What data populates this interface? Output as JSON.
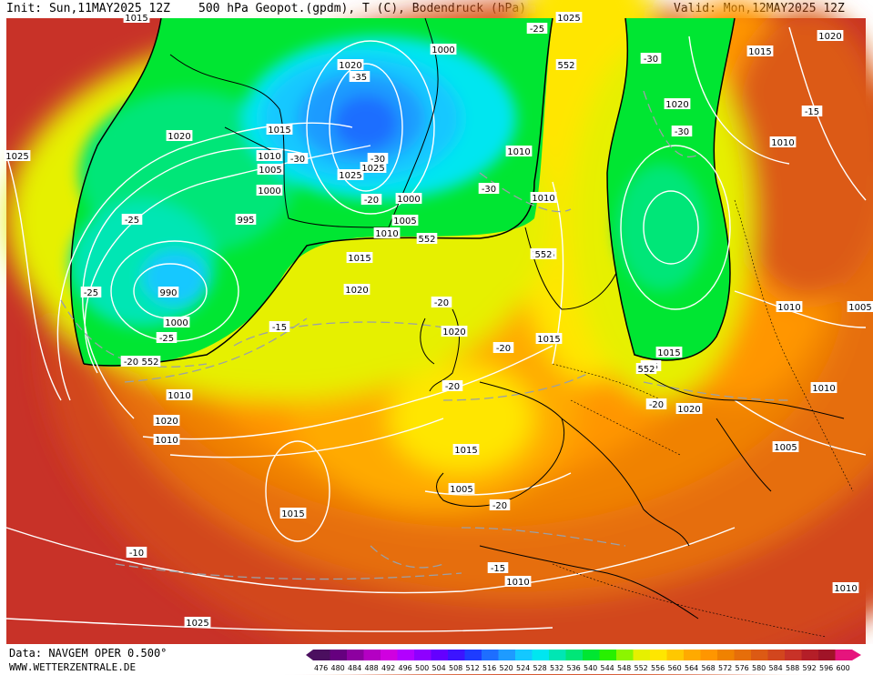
{
  "header": {
    "init": "Init: Sun,11MAY2025 12Z",
    "title": "500 hPa Geopot.(gpdm), T (C), Bodendruck (hPa)",
    "valid": "Valid: Mon,12MAY2025 12Z"
  },
  "footer": {
    "source": "Data: NAVGEM OPER 0.500°",
    "url": "WWW.WETTERZENTRALE.DE"
  },
  "legend": {
    "values": [
      "476",
      "480",
      "484",
      "488",
      "492",
      "496",
      "500",
      "504",
      "508",
      "512",
      "516",
      "520",
      "524",
      "528",
      "532",
      "536",
      "540",
      "544",
      "548",
      "552",
      "556",
      "560",
      "564",
      "568",
      "572",
      "576",
      "580",
      "584",
      "588",
      "592",
      "596",
      "600"
    ],
    "colors": [
      "#4b0f5f",
      "#66007f",
      "#8d00a0",
      "#b400c3",
      "#d000e0",
      "#b200ff",
      "#8e00ff",
      "#6400ff",
      "#3c14ff",
      "#1e3cff",
      "#1e6eff",
      "#1e9bff",
      "#14c8ff",
      "#00e6f0",
      "#00e6b4",
      "#00e678",
      "#00e632",
      "#28f000",
      "#8cf500",
      "#e6f000",
      "#ffe600",
      "#ffc800",
      "#ffaa00",
      "#ff9600",
      "#f08200",
      "#e66e0a",
      "#dc5a14",
      "#d2461e",
      "#c83228",
      "#b41e28",
      "#a01428",
      "#e6147d"
    ]
  },
  "map": {
    "pressure_labels": [
      "1015",
      "1025",
      "1020",
      "1015",
      "1000",
      "1020",
      "1025",
      "1020",
      "1015",
      "1025",
      "1010",
      "1005",
      "1000",
      "995",
      "990",
      "1000",
      "1025",
      "1000",
      "1005",
      "1010",
      "1015",
      "1010",
      "1020",
      "1015",
      "1020",
      "1010",
      "1005",
      "1010",
      "1015",
      "1020",
      "1015",
      "1020",
      "1010",
      "1015",
      "1020",
      "1010",
      "1005",
      "1010",
      "1005",
      "1015",
      "1010",
      "1010",
      "1025",
      "1010"
    ],
    "temp_labels": [
      "-25",
      "-30",
      "-35",
      "-30",
      "-30",
      "-25",
      "-30",
      "-20",
      "-30",
      "-25",
      "-25",
      "-20",
      "-15",
      "-15",
      "-20",
      "-20",
      "-20",
      "-25",
      "-20",
      "-20",
      "-10",
      "-15"
    ],
    "geopot_labels": [
      "552",
      "552",
      "552",
      "552",
      "552"
    ]
  }
}
